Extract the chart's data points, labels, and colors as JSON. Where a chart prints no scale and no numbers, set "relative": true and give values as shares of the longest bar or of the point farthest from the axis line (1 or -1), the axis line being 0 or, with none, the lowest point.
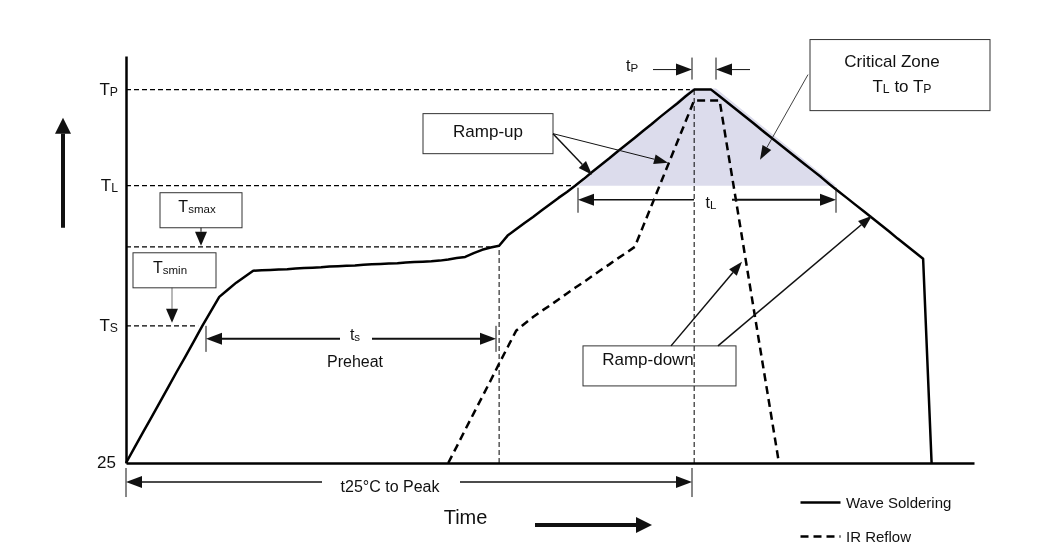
{
  "chart_data": {
    "type": "line",
    "relative": true,
    "xlabel": "Time",
    "tick_labels": false,
    "legend": "bottom right",
    "categories": [
      null,
      null,
      null,
      null,
      null,
      null,
      null,
      null,
      null,
      null,
      null,
      null,
      null,
      null,
      null,
      null,
      null,
      null,
      null,
      null,
      null,
      null,
      null,
      null,
      null,
      null,
      null,
      null,
      null,
      null,
      null,
      null,
      null,
      null,
      null,
      null,
      null,
      null,
      null,
      null,
      null,
      null,
      null,
      null,
      null,
      null,
      null,
      null,
      null,
      null,
      null,
      null,
      null,
      null,
      null,
      null,
      null,
      null,
      null,
      null,
      null,
      null,
      null,
      null,
      null,
      null,
      null,
      null,
      null,
      null,
      null,
      null,
      null,
      null,
      null,
      null,
      null,
      null,
      null,
      null,
      null,
      null,
      null,
      null,
      null,
      null,
      null,
      null,
      null,
      null,
      null,
      null,
      null,
      null,
      null,
      null,
      null,
      null,
      null,
      null,
      null
    ],
    "series": [
      {
        "name": "Wave Soldering",
        "color": "#000000",
        "line_style": "solid",
        "values": [
          0,
          0.041,
          0.082,
          0.122,
          0.163,
          0.204,
          0.245,
          0.285,
          0.326,
          0.367,
          0.406,
          0.445,
          0.464,
          0.483,
          0.499,
          0.515,
          0.516,
          0.517,
          0.518,
          0.519,
          0.521,
          0.522,
          0.523,
          0.524,
          0.526,
          0.527,
          0.528,
          0.529,
          0.531,
          0.532,
          0.533,
          0.534,
          0.535,
          0.537,
          0.538,
          0.539,
          0.54,
          0.542,
          0.545,
          0.549,
          0.552,
          0.562,
          0.571,
          0.577,
          0.582,
          0.609,
          0.626,
          0.643,
          0.659,
          0.676,
          0.693,
          0.71,
          0.726,
          0.743,
          0.761,
          0.78,
          0.798,
          0.816,
          0.835,
          0.853,
          0.871,
          0.89,
          0.908,
          0.927,
          0.945,
          0.963,
          0.982,
          1,
          1,
          1,
          0.982,
          0.964,
          0.946,
          0.928,
          0.91,
          0.891,
          0.873,
          0.855,
          0.837,
          0.819,
          0.801,
          0.783,
          0.765,
          0.746,
          0.728,
          0.71,
          0.692,
          0.674,
          0.656,
          0.638,
          0.62,
          0.601,
          0.583,
          0.565,
          0.547,
          0,
          null,
          null,
          null,
          null,
          null
        ]
      },
      {
        "name": "IR Reflow",
        "color": "#000000",
        "line_style": "dashed",
        "values": [
          null,
          null,
          null,
          null,
          null,
          null,
          null,
          null,
          null,
          null,
          null,
          null,
          null,
          null,
          null,
          null,
          null,
          null,
          null,
          null,
          null,
          null,
          null,
          null,
          null,
          null,
          null,
          null,
          null,
          null,
          null,
          null,
          null,
          null,
          null,
          null,
          null,
          null,
          0,
          0.044,
          0.089,
          0.133,
          0.177,
          0.221,
          0.266,
          0.31,
          0.354,
          0.373,
          0.391,
          0.407,
          0.422,
          0.438,
          0.454,
          0.47,
          0.485,
          0.501,
          0.517,
          0.532,
          0.548,
          0.563,
          0.579,
          0.635,
          0.691,
          0.747,
          0.803,
          0.859,
          0.915,
          0.971,
          0.971,
          0.971,
          0.971,
          0.832,
          0.694,
          0.555,
          0.416,
          0.277,
          0.139,
          0,
          null,
          null,
          null,
          null,
          null,
          null,
          null,
          null,
          null,
          null,
          null,
          null,
          null,
          null,
          null,
          null,
          null,
          null,
          null,
          null,
          null,
          null,
          null
        ]
      }
    ],
    "ref_lines": [
      {
        "axis": "y",
        "value": 1,
        "label": "T$_{P}$",
        "line_style": "dashed"
      },
      {
        "axis": "y",
        "value": 0.743,
        "label": "T$_{L}$",
        "line_style": "dashed"
      },
      {
        "axis": "y",
        "value": 0.579,
        "line_style": "dashed"
      },
      {
        "axis": "y",
        "value": 0.367,
        "label": "T$_{S}$",
        "line_style": "dashed"
      }
    ],
    "annotations": [
      "T$_{smax}$",
      "T$_{smin}$",
      "t$_{s}$",
      "Preheat",
      "Ramp-up",
      "Ramp-down",
      "Critical Zone",
      "T$_{L}$ to T$_{P}$",
      "t$_{P}$",
      "t$_{L}$",
      "t25°C to Peak",
      "25"
    ]
  }
}
